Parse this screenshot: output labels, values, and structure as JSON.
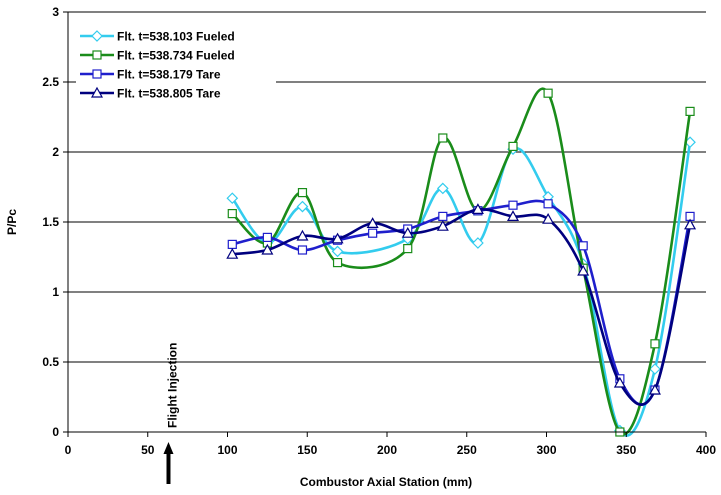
{
  "chart_data": {
    "type": "line",
    "title": "",
    "xlabel": "Combustor Axial Station (mm)",
    "ylabel": "P/Pc",
    "xlim": [
      0,
      400
    ],
    "ylim": [
      0,
      3
    ],
    "x_ticks": [
      0,
      50,
      100,
      150,
      200,
      250,
      300,
      350,
      400
    ],
    "y_ticks": [
      0,
      0.5,
      1,
      1.5,
      2,
      2.5,
      3
    ],
    "x_tick_labels": [
      "0",
      "50",
      "100",
      "150",
      "200",
      "250",
      "300",
      "350",
      "400"
    ],
    "y_tick_labels": [
      "0",
      "0.5",
      "1",
      "1.5",
      "2",
      "2.5",
      "3"
    ],
    "grid": "horizontal",
    "legend_position": "top-left",
    "annotation": {
      "text": "Flight Injection",
      "x": 63,
      "arrow": "up"
    },
    "series": [
      {
        "name": "Flt. t=538.103 Fueled",
        "color": "#33ccee",
        "marker": "diamond",
        "x": [
          103,
          125,
          147,
          169,
          213,
          235,
          257,
          279,
          301,
          323,
          346,
          368,
          390
        ],
        "y": [
          1.67,
          1.35,
          1.61,
          1.29,
          1.38,
          1.74,
          1.35,
          2.02,
          1.68,
          1.2,
          0.01,
          0.45,
          2.07
        ]
      },
      {
        "name": "Flt. t=538.734 Fueled",
        "color": "#1a8c1a",
        "marker": "square",
        "x": [
          103,
          125,
          147,
          169,
          213,
          235,
          257,
          279,
          301,
          323,
          346,
          368,
          390
        ],
        "y": [
          1.56,
          1.35,
          1.71,
          1.21,
          1.31,
          2.1,
          1.58,
          2.04,
          2.42,
          1.17,
          0.0,
          0.63,
          2.29
        ]
      },
      {
        "name": "Flt. t=538.179 Tare",
        "color": "#1f1fcc",
        "marker": "square",
        "x": [
          103,
          125,
          147,
          169,
          191,
          213,
          235,
          257,
          279,
          301,
          323,
          346,
          368,
          390
        ],
        "y": [
          1.34,
          1.39,
          1.3,
          1.37,
          1.42,
          1.45,
          1.54,
          1.58,
          1.62,
          1.63,
          1.33,
          0.38,
          0.3,
          1.54
        ]
      },
      {
        "name": "Flt. t=538.805 Tare",
        "color": "#00007f",
        "marker": "triangle",
        "x": [
          103,
          125,
          147,
          169,
          191,
          213,
          235,
          257,
          279,
          301,
          323,
          346,
          368,
          390
        ],
        "y": [
          1.27,
          1.3,
          1.4,
          1.38,
          1.49,
          1.42,
          1.47,
          1.59,
          1.54,
          1.52,
          1.15,
          0.35,
          0.3,
          1.48
        ]
      }
    ]
  }
}
